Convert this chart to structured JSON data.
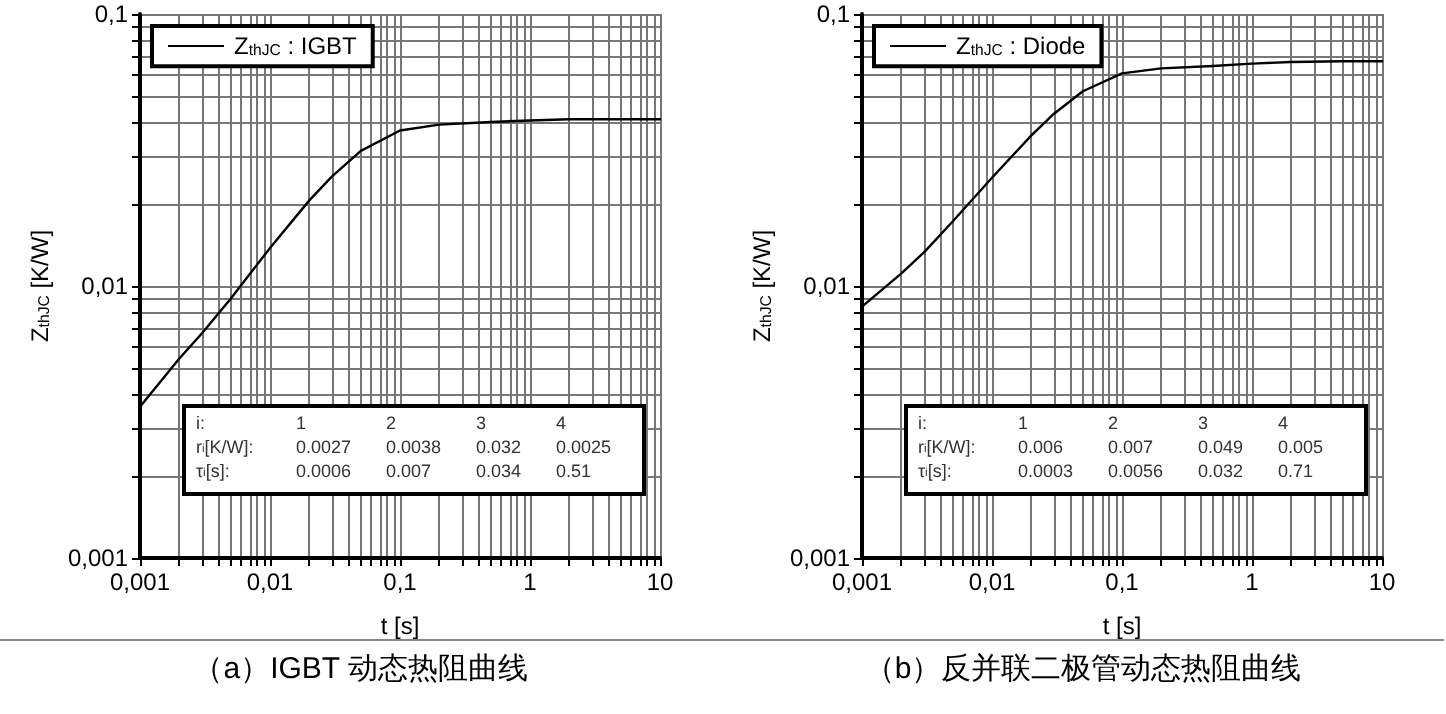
{
  "chart_data": [
    {
      "type": "line",
      "title": "（a）IGBT 动态热阻曲线",
      "xlabel": "t [s]",
      "ylabel": "Z$_{thJC}$ [K/W]",
      "x": [
        0.001,
        0.002,
        0.003,
        0.005,
        0.01,
        0.02,
        0.03,
        0.05,
        0.1,
        0.2,
        0.5,
        1,
        2,
        5,
        10
      ],
      "series": [
        {
          "name": "Z$_{thJC}$ : IGBT",
          "color": "#000000",
          "values": [
            0.0036,
            0.0054,
            0.0067,
            0.009,
            0.0138,
            0.0206,
            0.0253,
            0.0314,
            0.0373,
            0.0392,
            0.0401,
            0.0406,
            0.041,
            0.041,
            0.041
          ]
        }
      ],
      "xlim": [
        0.001,
        10
      ],
      "xticks": [
        {
          "value": 0.001,
          "label": "0,001"
        },
        {
          "value": 0.01,
          "label": "0,01"
        },
        {
          "value": 0.1,
          "label": "0,1"
        },
        {
          "value": 1,
          "label": "1"
        },
        {
          "value": 10,
          "label": "10"
        }
      ],
      "ylim": [
        0.001,
        0.1
      ],
      "yticks": [
        {
          "value": 0.001,
          "label": "0,001"
        },
        {
          "value": 0.01,
          "label": "0,01"
        },
        {
          "value": 0.1,
          "label": "0,1"
        }
      ],
      "log": "xy",
      "grid": true,
      "legend": "top left",
      "line_style": "solid",
      "marker": "none",
      "annotations": [
        "i:\t1\t2\t3\t4",
        "r$_{i}$[K/W]:\t0.0027\t0.0038\t0.032\t0.0025",
        "τ$_{i}$[s]:\t0.0006\t0.007\t0.034\t0.51"
      ]
    },
    {
      "type": "line",
      "title": "（b）反并联二极管动态热阻曲线",
      "xlabel": "t [s]",
      "ylabel": "Z$_{thJC}$ [K/W]",
      "x": [
        0.001,
        0.002,
        0.003,
        0.005,
        0.01,
        0.02,
        0.03,
        0.05,
        0.1,
        0.2,
        0.5,
        1,
        2,
        5,
        10
      ],
      "series": [
        {
          "name": "Z$_{thJC}$ : Diode",
          "color": "#000000",
          "values": [
            0.0084,
            0.0111,
            0.0133,
            0.0173,
            0.025,
            0.0357,
            0.043,
            0.052,
            0.0605,
            0.0631,
            0.0644,
            0.0657,
            0.0666,
            0.067,
            0.067
          ]
        }
      ],
      "xlim": [
        0.001,
        10
      ],
      "xticks": [
        {
          "value": 0.001,
          "label": "0,001"
        },
        {
          "value": 0.01,
          "label": "0,01"
        },
        {
          "value": 0.1,
          "label": "0,1"
        },
        {
          "value": 1,
          "label": "1"
        },
        {
          "value": 10,
          "label": "10"
        }
      ],
      "ylim": [
        0.001,
        0.1
      ],
      "yticks": [
        {
          "value": 0.001,
          "label": "0,001"
        },
        {
          "value": 0.01,
          "label": "0,01"
        },
        {
          "value": 0.1,
          "label": "0,1"
        }
      ],
      "log": "xy",
      "grid": true,
      "legend": "top left",
      "line_style": "solid",
      "marker": "none",
      "annotations": [
        "i:\t1\t2\t3\t4",
        "r$_{i}$[K/W]:\t0.006\t0.007\t0.049\t0.005",
        "τ$_{i}$[s]:\t0.0003\t0.0056\t0.032\t0.71"
      ]
    }
  ]
}
